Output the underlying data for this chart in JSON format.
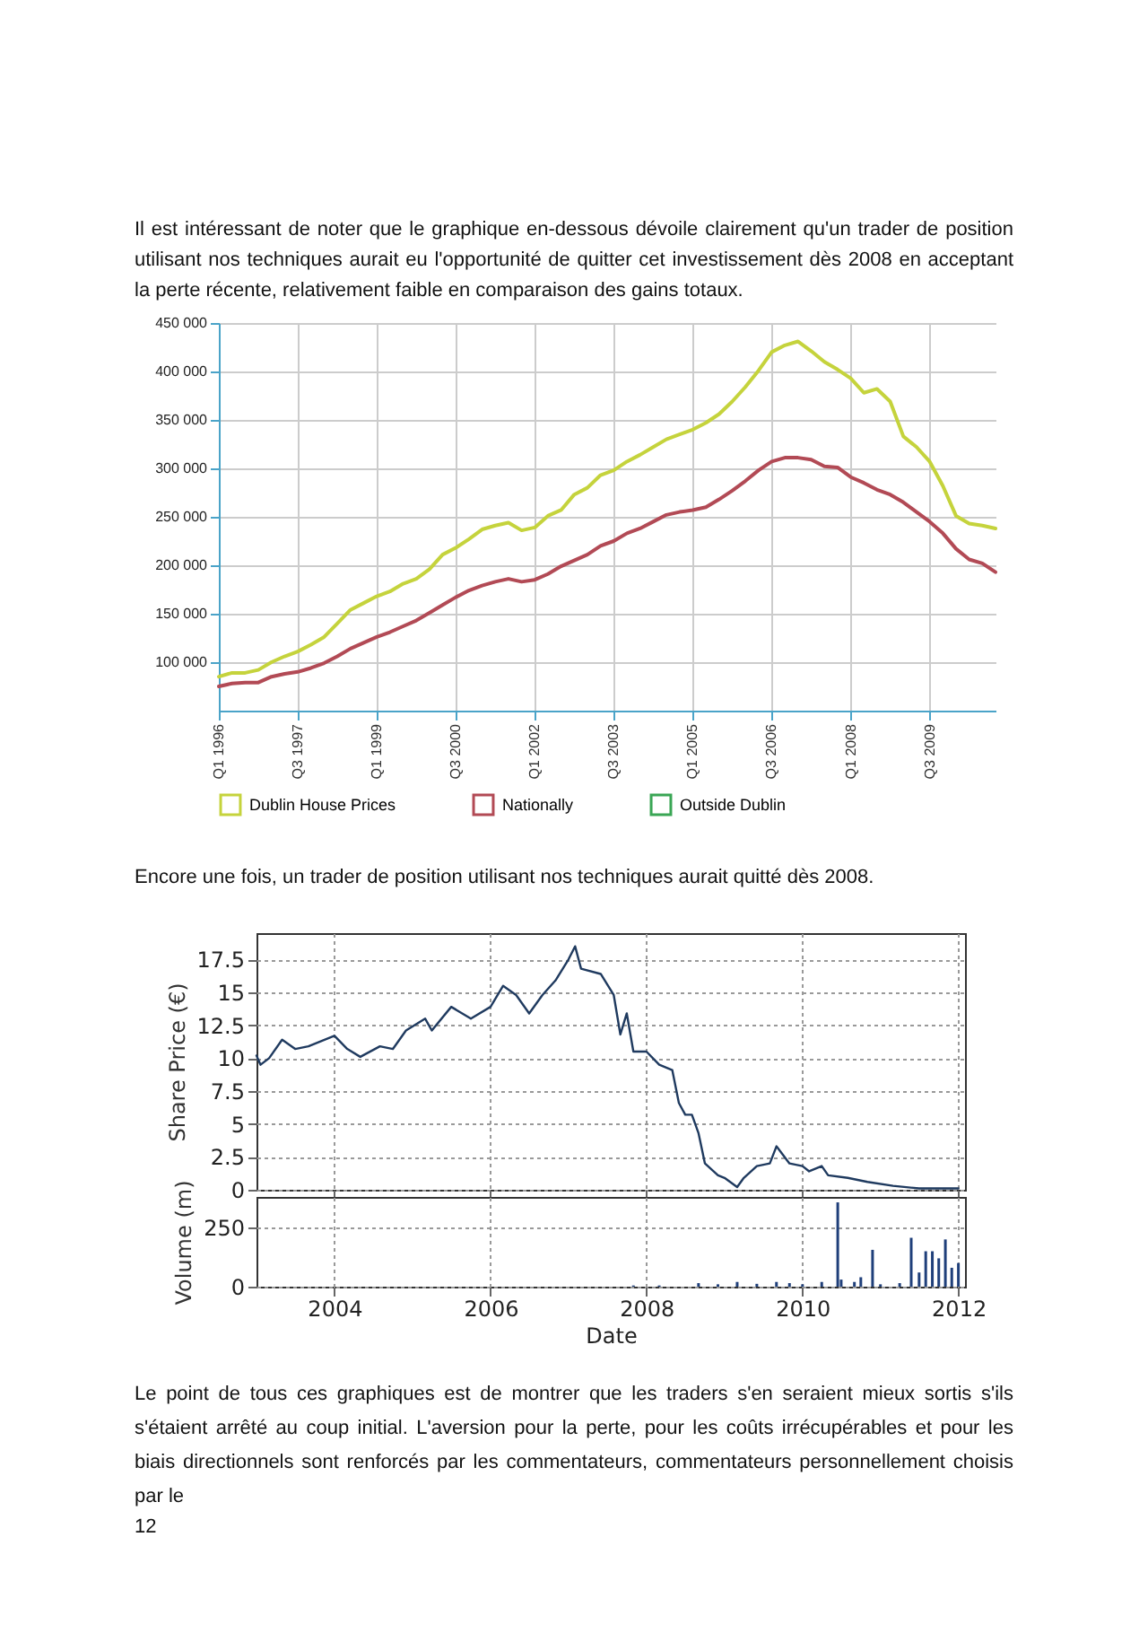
{
  "chart_data": [
    {
      "type": "line",
      "annotations": [
        "Il est intéressant de noter que le graphique en-dessous dévoile clairement qu'un trader de position utilisant nos techniques aurait eu l'opportunité de quitter cet investissement dès 2008 en acceptant la perte récente, relativement faible en comparaison des gains totaux."
      ],
      "categories": [
        "Q1 1996",
        null,
        null,
        null,
        null,
        null,
        "Q3 1997",
        null,
        null,
        null,
        null,
        null,
        "Q1 1999",
        null,
        null,
        null,
        null,
        null,
        "Q3 2000",
        null,
        null,
        null,
        null,
        null,
        "Q1 2002",
        null,
        null,
        null,
        null,
        null,
        "Q3 2003",
        null,
        null,
        null,
        null,
        null,
        "Q1 2005",
        null,
        null,
        null,
        null,
        null,
        "Q3 2006",
        null,
        null,
        null,
        null,
        null,
        "Q1 2008",
        null,
        null,
        null,
        null,
        null,
        "Q3 2009",
        null,
        null,
        null,
        null,
        null
      ],
      "series": [
        {
          "name": "Dublin House Prices",
          "color": "#c5d33c",
          "values": [
            85000,
            89000,
            89000,
            92000,
            100000,
            106000,
            111000,
            118000,
            126000,
            140000,
            154000,
            161000,
            168000,
            173000,
            181000,
            186000,
            196000,
            211000,
            218000,
            227000,
            237000,
            241000,
            244000,
            236000,
            239000,
            251000,
            257000,
            273000,
            280000,
            293000,
            298000,
            307000,
            314000,
            322000,
            330000,
            335000,
            340000,
            347000,
            356000,
            369000,
            384000,
            401000,
            420000,
            427000,
            431000,
            421000,
            410000,
            402000,
            393000,
            378000,
            382000,
            369000,
            333000,
            322000,
            307000,
            282000,
            251000,
            243000,
            241000,
            238000
          ]
        },
        {
          "name": "Nationally",
          "color": "#b24a55",
          "values": [
            75000,
            78000,
            79000,
            79000,
            85000,
            88000,
            90000,
            94000,
            99000,
            106000,
            114000,
            120000,
            126000,
            131000,
            137000,
            143000,
            151000,
            159000,
            167000,
            174000,
            179000,
            183000,
            186000,
            183000,
            185000,
            191000,
            199000,
            205000,
            211000,
            220000,
            225000,
            233000,
            238000,
            245000,
            252000,
            255000,
            257000,
            260000,
            268000,
            277000,
            287000,
            298000,
            307000,
            311000,
            311000,
            309000,
            302000,
            301000,
            291000,
            285000,
            278000,
            273000,
            265000,
            255000,
            245000,
            233000,
            217000,
            206000,
            202000,
            193000
          ]
        },
        {
          "name": "Outside Dublin",
          "color": "#3aa655",
          "values": [
            null,
            null,
            null,
            null,
            null,
            null,
            null,
            null,
            null,
            null,
            null,
            null,
            null,
            null,
            null,
            null,
            null,
            null,
            null,
            null,
            null,
            null,
            null,
            null,
            null,
            null,
            null,
            null,
            null,
            null,
            null,
            null,
            null,
            null,
            null,
            null,
            null,
            null,
            null,
            null,
            null,
            null,
            null,
            null,
            null,
            null,
            null,
            null,
            null,
            null,
            null,
            null,
            null,
            null,
            null,
            null,
            null,
            null,
            null,
            null
          ]
        }
      ],
      "ylim": [
        50000,
        450000
      ],
      "yticks": [
        {
          "value": 100000,
          "label": "100 000"
        },
        {
          "value": 150000,
          "label": "150 000"
        },
        {
          "value": 200000,
          "label": "200 000"
        },
        {
          "value": 250000,
          "label": "250 000"
        },
        {
          "value": 300000,
          "label": "300 000"
        },
        {
          "value": 350000,
          "label": "350 000"
        },
        {
          "value": 400000,
          "label": "400 000"
        },
        {
          "value": 450000,
          "label": "450 000"
        }
      ],
      "grid": true,
      "legend": "bottom"
    },
    {
      "type": "line",
      "annotations": [
        "Encore une fois, un trader de position utilisant nos techniques aurait quitté dès 2008."
      ],
      "ylabel": "Share Price (€)",
      "x": [
        "2003-01",
        "2003-01-20",
        "2003-03",
        "2003-05",
        "2003-07",
        "2003-09",
        "2004-01",
        "2004-03",
        "2004-05",
        "2004-08",
        "2004-10",
        "2004-12",
        "2005-03",
        "2005-04",
        "2005-07",
        "2005-10",
        "2006-01",
        "2006-03",
        "2006-05",
        "2006-07",
        "2006-09",
        "2006-11",
        "2007-01",
        "2007-02",
        "2007-03",
        "2007-06",
        "2007-08",
        "2007-09",
        "2007-10",
        "2007-11",
        "2008-01",
        "2008-03",
        "2008-05",
        "2008-06",
        "2008-07",
        "2008-08",
        "2008-09",
        "2008-10",
        "2008-12",
        "2009-01",
        "2009-03",
        "2009-04",
        "2009-06",
        "2009-08",
        "2009-09",
        "2009-11",
        "2010-01",
        "2010-02",
        "2010-04",
        "2010-05",
        "2010-08",
        "2010-11",
        "2011-03",
        "2011-07",
        "2012-01"
      ],
      "series": [
        {
          "color": "#1f3a5f",
          "values": [
            10.2,
            9.5,
            10.0,
            11.4,
            10.7,
            10.9,
            11.7,
            10.7,
            10.1,
            10.9,
            10.7,
            12.1,
            13.0,
            12.1,
            13.9,
            13.0,
            13.9,
            15.5,
            14.8,
            13.4,
            14.8,
            15.9,
            17.5,
            18.5,
            16.8,
            16.4,
            14.8,
            11.8,
            13.4,
            10.5,
            10.5,
            9.5,
            9.1,
            6.6,
            5.7,
            5.7,
            4.3,
            2.0,
            1.1,
            0.9,
            0.2,
            0.9,
            1.8,
            2.0,
            3.3,
            2.0,
            1.8,
            1.4,
            1.8,
            1.1,
            0.9,
            0.6,
            0.3,
            0.1,
            0.1
          ]
        }
      ],
      "xlim": [
        "2003-01",
        "2012-02"
      ],
      "xticks": [
        "2004",
        "2006",
        "2008",
        "2010",
        "2012"
      ],
      "ylim": [
        0,
        19.5
      ],
      "yticks": [
        0,
        2.5,
        5,
        7.5,
        10,
        12.5,
        15,
        17.5
      ],
      "grid": true,
      "tick_labels": "y"
    },
    {
      "type": "bar",
      "annotations": [
        "Le point de tous ces graphiques est de montrer que les traders s'en seraient mieux sortis s'ils s'étaient arrêté au coup initial. L'aversion pour la perte, pour les coûts irrécupérables et pour les biais directionnels sont renforcés par les commentateurs, commentateurs personnellement choisis par le",
        "12"
      ],
      "ylabel": "Volume (m)",
      "xlabel": "Date",
      "x": [
        "2007-11",
        "2008-03",
        "2008-09",
        "2008-12",
        "2009-03",
        "2009-06",
        "2009-09",
        "2009-11",
        "2010-01",
        "2010-04",
        "2010-06-15",
        "2010-07",
        "2010-09",
        "2010-10",
        "2010-11-25",
        "2011-01",
        "2011-04",
        "2011-05-25",
        "2011-07",
        "2011-08",
        "2011-09",
        "2011-10",
        "2011-11",
        "2011-12",
        "2012-01"
      ],
      "series": [
        {
          "color": "#1f3f7a",
          "values": [
            5,
            5,
            15,
            10,
            20,
            12,
            20,
            15,
            10,
            20,
            357,
            30,
            20,
            40,
            156,
            10,
            15,
            207,
            60,
            150,
            150,
            120,
            200,
            80,
            100
          ]
        }
      ],
      "xlim": [
        "2003-01",
        "2012-02"
      ],
      "xticks": [
        "2004",
        "2006",
        "2008",
        "2010",
        "2012"
      ],
      "ylim": [
        0,
        380
      ],
      "yticks": [
        0,
        250
      ],
      "grid": true
    }
  ]
}
